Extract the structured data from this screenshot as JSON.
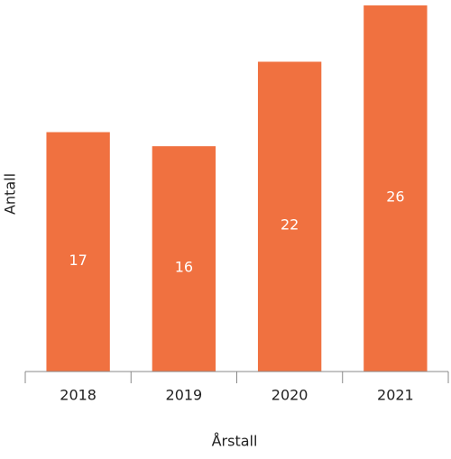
{
  "chart_data": {
    "type": "bar",
    "x_label": "Årstall",
    "y_label": "Antall",
    "categories": [
      "2018",
      "2019",
      "2020",
      "2021"
    ],
    "values": [
      17,
      16,
      22,
      26
    ],
    "color": "#f07140",
    "ylim": [
      0,
      26
    ]
  }
}
